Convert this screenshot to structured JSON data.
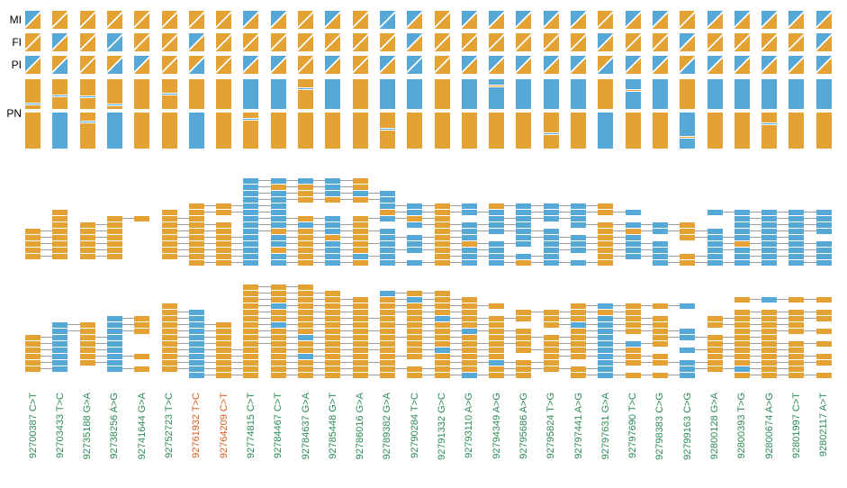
{
  "figure": {
    "row_labels": [
      "MI",
      "FI",
      "PI",
      "PN"
    ],
    "colors": {
      "orange": "#E3A233",
      "blue": "#56A9D6",
      "connector": "#9e9e9e",
      "divider": "#ffffff",
      "label_green": "#2E8B57",
      "label_highlight": "#D95F20",
      "row_label_text": "#000000"
    }
  },
  "chart_data": {
    "type": "haplotype-read-phasing-plot",
    "snps": [
      "92700387 C>T",
      "92703433 T>C",
      "92735188 G>A",
      "92738256 A>G",
      "92741644 G>A",
      "92752723 T>C",
      "92761932 T>C",
      "92764209 C>T",
      "92774815 C>T",
      "92784467 C>T",
      "92784637 G>A",
      "92785448 G>T",
      "92786016 G>A",
      "92789382 G>A",
      "92790284 T>C",
      "92791332 G>C",
      "92793110 A>G",
      "92794349 A>G",
      "92795686 A>G",
      "92795824 T>G",
      "92797441 A>G",
      "92797631 G>A",
      "92797690 T>C",
      "92798383 C>G",
      "92799163 C>G",
      "92800128 G>A",
      "92800393 T>G",
      "92800674 A>G",
      "92801997 C>T",
      "92802117 A>T"
    ],
    "highlighted_indices": [
      6,
      7
    ],
    "genotype_MI": [
      "BO",
      "OO",
      "OO",
      "OO",
      "OO",
      "OO",
      "OO",
      "OO",
      "BO",
      "BO",
      "OO",
      "BO",
      "OO",
      "BB",
      "BO",
      "OO",
      "BO",
      "BO",
      "BO",
      "BO",
      "BO",
      "OO",
      "BO",
      "BO",
      "OO",
      "BO",
      "BO",
      "BO",
      "BO",
      "BO"
    ],
    "genotype_FI": [
      "OO",
      "BO",
      "OO",
      "BB",
      "OO",
      "OO",
      "BO",
      "OO",
      "OO",
      "OO",
      "OO",
      "OO",
      "OO",
      "OO",
      "BO",
      "OO",
      "OO",
      "OO",
      "OO",
      "OO",
      "OO",
      "BO",
      "OO",
      "OO",
      "BO",
      "OO",
      "OO",
      "OO",
      "OO",
      "BO"
    ],
    "genotype_PI": [
      "BO",
      "OB",
      "OO",
      "OB",
      "BO",
      "OO",
      "OB",
      "OO",
      "BO",
      "BO",
      "OO",
      "BO",
      "OO",
      "BO",
      "BB",
      "OO",
      "BO",
      "BO",
      "BO",
      "BO",
      "BO",
      "OB",
      "BO",
      "BO",
      "OB",
      "BO",
      "BO",
      "BO",
      "BO",
      "BO"
    ],
    "haplotype1": "OOOOOOOOBBOBOBBOBBBBBOBBOBBBBB",
    "haplotype2": "OBOBOOBOOOOOOOOOOOOOOBOOBOOOOO",
    "pn_stripes": [
      {
        "col": 0,
        "bar": 0,
        "frac": 0.85
      },
      {
        "col": 1,
        "bar": 0,
        "frac": 0.55
      },
      {
        "col": 2,
        "bar": 0,
        "frac": 0.6
      },
      {
        "col": 3,
        "bar": 0,
        "frac": 0.9
      },
      {
        "col": 2,
        "bar": 1,
        "frac": 0.25
      },
      {
        "col": 5,
        "bar": 0,
        "frac": 0.5
      },
      {
        "col": 8,
        "bar": 1,
        "frac": 0.15
      },
      {
        "col": 10,
        "bar": 0,
        "frac": 0.3
      },
      {
        "col": 13,
        "bar": 1,
        "frac": 0.45
      },
      {
        "col": 17,
        "bar": 0,
        "frac": 0.2
      },
      {
        "col": 19,
        "bar": 1,
        "frac": 0.6
      },
      {
        "col": 22,
        "bar": 0,
        "frac": 0.35
      },
      {
        "col": 24,
        "bar": 1,
        "frac": 0.7
      },
      {
        "col": 27,
        "bar": 1,
        "frac": 0.3
      }
    ],
    "reads_panel1": [
      [
        0,
        8,
        5
      ],
      [
        1,
        8,
        5
      ],
      [
        2,
        8,
        6
      ],
      [
        3,
        8,
        6
      ],
      [
        4,
        6,
        4
      ],
      [
        4,
        13,
        4
      ],
      [
        4,
        17,
        5
      ],
      [
        5,
        1,
        1
      ],
      [
        5,
        5,
        1
      ],
      [
        5,
        6,
        4
      ],
      [
        5,
        13,
        5
      ],
      [
        5,
        18,
        5
      ],
      [
        5,
        25,
        5
      ],
      [
        6,
        1,
        1
      ],
      [
        6,
        3,
        2
      ],
      [
        6,
        5,
        2
      ],
      [
        6,
        8,
        4
      ],
      [
        6,
        12,
        4
      ],
      [
        6,
        17,
        4
      ],
      [
        6,
        26,
        4
      ],
      [
        7,
        1,
        1
      ],
      [
        7,
        2,
        2
      ],
      [
        7,
        5,
        3
      ],
      [
        7,
        8,
        5
      ],
      [
        7,
        14,
        5
      ],
      [
        7,
        20,
        5
      ],
      [
        7,
        26,
        4
      ],
      [
        8,
        0,
        2
      ],
      [
        8,
        2,
        2
      ],
      [
        8,
        5,
        3
      ],
      [
        8,
        8,
        6
      ],
      [
        8,
        15,
        5
      ],
      [
        8,
        21,
        5
      ],
      [
        8,
        26,
        4
      ],
      [
        9,
        0,
        2
      ],
      [
        9,
        2,
        2
      ],
      [
        9,
        5,
        4
      ],
      [
        9,
        9,
        4
      ],
      [
        9,
        13,
        4
      ],
      [
        9,
        18,
        5
      ],
      [
        9,
        24,
        5
      ],
      [
        10,
        0,
        2
      ],
      [
        10,
        2,
        2
      ],
      [
        10,
        5,
        4
      ],
      [
        10,
        9,
        5
      ],
      [
        10,
        14,
        5
      ],
      [
        10,
        19,
        5
      ],
      [
        10,
        25,
        5
      ],
      [
        11,
        0,
        2
      ],
      [
        11,
        2,
        2
      ],
      [
        11,
        5,
        4
      ],
      [
        11,
        9,
        4
      ],
      [
        11,
        13,
        5
      ],
      [
        11,
        19,
        5
      ],
      [
        11,
        25,
        5
      ],
      [
        12,
        0,
        2
      ],
      [
        12,
        2,
        2
      ],
      [
        12,
        5,
        4
      ],
      [
        12,
        9,
        5
      ],
      [
        12,
        15,
        5
      ],
      [
        12,
        21,
        5
      ],
      [
        12,
        26,
        4
      ],
      [
        13,
        6,
        3
      ],
      [
        13,
        9,
        4
      ],
      [
        13,
        13,
        4
      ],
      [
        13,
        17,
        5
      ],
      [
        13,
        23,
        5
      ],
      [
        13,
        28,
        2
      ]
    ],
    "reads_panel2": [
      [
        0,
        8,
        3
      ],
      [
        1,
        8,
        4
      ],
      [
        1,
        13,
        3
      ],
      [
        2,
        8,
        5
      ],
      [
        2,
        13,
        4
      ],
      [
        2,
        26,
        4
      ],
      [
        3,
        5,
        1
      ],
      [
        3,
        8,
        5
      ],
      [
        3,
        13,
        5
      ],
      [
        3,
        20,
        5
      ],
      [
        4,
        5,
        2
      ],
      [
        4,
        8,
        5
      ],
      [
        4,
        13,
        4
      ],
      [
        4,
        18,
        5
      ],
      [
        4,
        26,
        4
      ],
      [
        5,
        3,
        2
      ],
      [
        5,
        5,
        2
      ],
      [
        5,
        8,
        6
      ],
      [
        5,
        14,
        5
      ],
      [
        5,
        19,
        5
      ],
      [
        5,
        25,
        5
      ],
      [
        6,
        1,
        2
      ],
      [
        6,
        3,
        2
      ],
      [
        6,
        5,
        3
      ],
      [
        6,
        8,
        5
      ],
      [
        6,
        13,
        5
      ],
      [
        6,
        19,
        5
      ],
      [
        6,
        25,
        4
      ],
      [
        7,
        1,
        2
      ],
      [
        7,
        3,
        2
      ],
      [
        7,
        5,
        3
      ],
      [
        7,
        8,
        6
      ],
      [
        7,
        14,
        5
      ],
      [
        7,
        20,
        5
      ],
      [
        7,
        26,
        4
      ],
      [
        8,
        0,
        2
      ],
      [
        8,
        2,
        2
      ],
      [
        8,
        5,
        3
      ],
      [
        8,
        8,
        5
      ],
      [
        8,
        13,
        4
      ],
      [
        8,
        17,
        5
      ],
      [
        8,
        23,
        5
      ],
      [
        9,
        0,
        2
      ],
      [
        9,
        2,
        2
      ],
      [
        9,
        5,
        3
      ],
      [
        9,
        8,
        6
      ],
      [
        9,
        14,
        5
      ],
      [
        9,
        19,
        5
      ],
      [
        9,
        25,
        5
      ],
      [
        10,
        0,
        2
      ],
      [
        10,
        2,
        2
      ],
      [
        10,
        5,
        4
      ],
      [
        10,
        9,
        5
      ],
      [
        10,
        14,
        4
      ],
      [
        10,
        18,
        5
      ],
      [
        10,
        24,
        5
      ],
      [
        11,
        0,
        2
      ],
      [
        11,
        2,
        3
      ],
      [
        11,
        5,
        4
      ],
      [
        11,
        9,
        4
      ],
      [
        11,
        13,
        5
      ],
      [
        11,
        19,
        5
      ],
      [
        11,
        25,
        5
      ],
      [
        12,
        0,
        2
      ],
      [
        12,
        2,
        2
      ],
      [
        12,
        5,
        4
      ],
      [
        12,
        9,
        5
      ],
      [
        12,
        15,
        5
      ],
      [
        12,
        21,
        5
      ],
      [
        12,
        26,
        4
      ],
      [
        13,
        0,
        2
      ],
      [
        13,
        3,
        2
      ],
      [
        13,
        5,
        4
      ],
      [
        13,
        9,
        4
      ],
      [
        13,
        13,
        4
      ],
      [
        13,
        17,
        5
      ],
      [
        13,
        24,
        5
      ],
      [
        14,
        6,
        3
      ],
      [
        14,
        9,
        5
      ],
      [
        14,
        14,
        5
      ],
      [
        14,
        20,
        5
      ],
      [
        14,
        26,
        4
      ]
    ],
    "flips_panel1": [
      [
        0,
        10
      ],
      [
        1,
        9
      ],
      [
        2,
        12
      ],
      [
        3,
        11
      ],
      [
        4,
        17
      ],
      [
        5,
        13
      ],
      [
        6,
        14
      ],
      [
        7,
        10
      ],
      [
        8,
        9
      ],
      [
        8,
        22
      ],
      [
        9,
        11
      ],
      [
        10,
        16
      ],
      [
        10,
        26
      ],
      [
        11,
        9
      ],
      [
        12,
        12
      ],
      [
        13,
        18
      ]
    ],
    "flips_panel2": [
      [
        1,
        13
      ],
      [
        2,
        14
      ],
      [
        2,
        27
      ],
      [
        3,
        9
      ],
      [
        4,
        21
      ],
      [
        5,
        15
      ],
      [
        6,
        9
      ],
      [
        6,
        20
      ],
      [
        7,
        16
      ],
      [
        8,
        10
      ],
      [
        9,
        22
      ],
      [
        10,
        15
      ],
      [
        11,
        10
      ],
      [
        12,
        17
      ],
      [
        13,
        26
      ],
      [
        14,
        16
      ]
    ]
  }
}
